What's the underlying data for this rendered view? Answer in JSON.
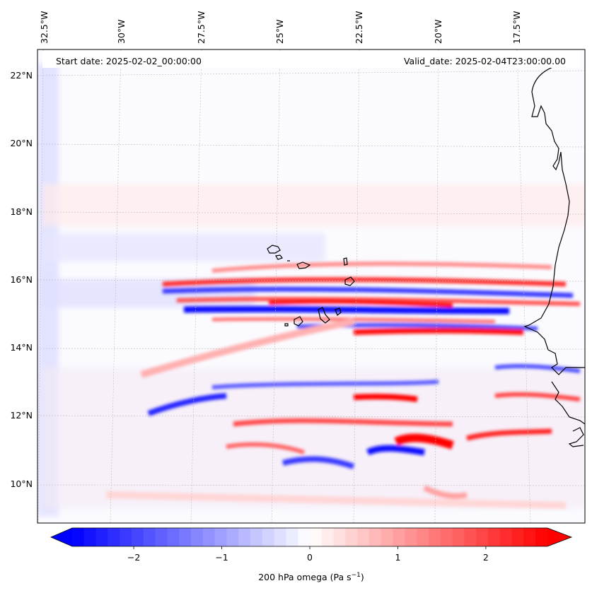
{
  "map": {
    "start_date_label": "Start date: 2025-02-02_00:00:00",
    "valid_date_label": "Valid_date: 2025-02-04T23:00:00.00",
    "extent": {
      "lon_min": -33.0,
      "lon_max": -15.4,
      "lat_min": 8.9,
      "lat_max": 22.8
    },
    "lon_ticks": [
      {
        "value": -32.5,
        "label": "32.5°W"
      },
      {
        "value": -30.0,
        "label": "30°W"
      },
      {
        "value": -27.5,
        "label": "27.5°W"
      },
      {
        "value": -25.0,
        "label": "25°W"
      },
      {
        "value": -22.5,
        "label": "22.5°W"
      },
      {
        "value": -20.0,
        "label": "20°W"
      },
      {
        "value": -17.5,
        "label": "17.5°W"
      }
    ],
    "lat_ticks": [
      {
        "value": 22,
        "label": "22°N"
      },
      {
        "value": 20,
        "label": "20°N"
      },
      {
        "value": 18,
        "label": "18°N"
      },
      {
        "value": 16,
        "label": "16°N"
      },
      {
        "value": 14,
        "label": "14°N"
      },
      {
        "value": 12,
        "label": "12°N"
      },
      {
        "value": 10,
        "label": "10°N"
      }
    ],
    "features": [
      "Cape Verde Islands",
      "West African coastline"
    ]
  },
  "colorbar": {
    "label": "200 hPa omega (Pa s",
    "label_exponent": "−1",
    "label_close": ")",
    "min": -2.7,
    "max": 2.7,
    "cmap": "bwr",
    "ticks": [
      {
        "value": -2,
        "label": "−2"
      },
      {
        "value": -1,
        "label": "−1"
      },
      {
        "value": 0,
        "label": "0"
      },
      {
        "value": 1,
        "label": "1"
      },
      {
        "value": 2,
        "label": "2"
      }
    ],
    "colors": {
      "negative": "#0000ff",
      "zero": "#ffffff",
      "positive": "#ff0000"
    }
  }
}
